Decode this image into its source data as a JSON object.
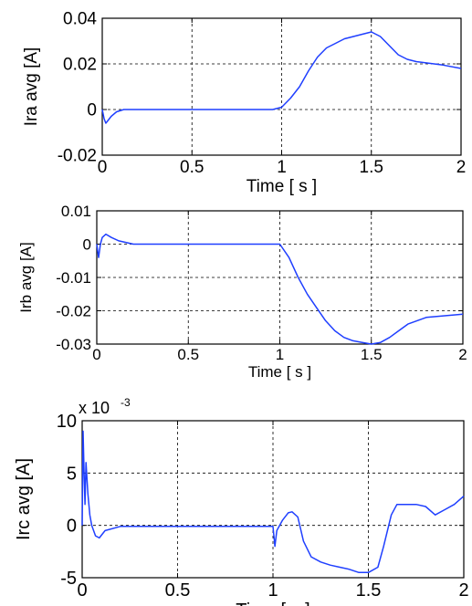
{
  "chart_data": [
    {
      "type": "line",
      "xlabel": "Time  [ s ]",
      "ylabel": "Ira avg  [A]",
      "xlim": [
        0,
        2
      ],
      "ylim": [
        -0.02,
        0.04
      ],
      "xticks": [
        "0",
        "0.5",
        "1",
        "1.5",
        "2"
      ],
      "yticks": [
        "-0.02",
        "0",
        "0.02",
        "0.04"
      ],
      "ytick_values": [
        -0.02,
        0,
        0.02,
        0.04
      ],
      "exponent_label": "",
      "grid": true,
      "color": "#1f3fff",
      "series": [
        {
          "x": [
            0,
            0.01,
            0.02,
            0.03,
            0.05,
            0.08,
            0.12,
            0.2,
            0.4,
            0.6,
            0.8,
            0.95,
            1.0,
            1.05,
            1.1,
            1.15,
            1.2,
            1.25,
            1.3,
            1.35,
            1.4,
            1.45,
            1.5,
            1.55,
            1.6,
            1.65,
            1.7,
            1.75,
            1.8,
            1.9,
            2.0
          ],
          "y": [
            0,
            -0.004,
            -0.006,
            -0.005,
            -0.003,
            -0.001,
            0,
            0,
            0,
            0,
            0,
            0,
            0.001,
            0.005,
            0.01,
            0.017,
            0.023,
            0.027,
            0.029,
            0.031,
            0.032,
            0.033,
            0.034,
            0.032,
            0.028,
            0.024,
            0.022,
            0.021,
            0.0205,
            0.0195,
            0.018
          ]
        }
      ]
    },
    {
      "type": "line",
      "xlabel": "Time [ s ]",
      "ylabel": "Irb avg  [A]",
      "xlim": [
        0,
        2
      ],
      "ylim": [
        -0.03,
        0.01
      ],
      "xticks": [
        "0",
        "0.5",
        "1",
        "1.5",
        "2"
      ],
      "yticks": [
        "-0.03",
        "-0.02",
        "-0.01",
        "0",
        "0.01"
      ],
      "ytick_values": [
        -0.03,
        -0.02,
        -0.01,
        0,
        0.01
      ],
      "exponent_label": "",
      "grid": true,
      "color": "#1f3fff",
      "series": [
        {
          "x": [
            0,
            0.01,
            0.02,
            0.03,
            0.05,
            0.08,
            0.12,
            0.2,
            0.4,
            0.6,
            0.8,
            0.95,
            1.0,
            1.05,
            1.1,
            1.15,
            1.2,
            1.25,
            1.3,
            1.35,
            1.4,
            1.45,
            1.5,
            1.55,
            1.6,
            1.65,
            1.7,
            1.8,
            1.9,
            2.0
          ],
          "y": [
            0,
            -0.004,
            0,
            0.002,
            0.003,
            0.002,
            0.001,
            0,
            0,
            0,
            0,
            0,
            0,
            -0.004,
            -0.01,
            -0.015,
            -0.019,
            -0.023,
            -0.026,
            -0.028,
            -0.029,
            -0.0295,
            -0.03,
            -0.0295,
            -0.028,
            -0.026,
            -0.024,
            -0.022,
            -0.0215,
            -0.021
          ]
        }
      ]
    },
    {
      "type": "line",
      "xlabel": "Time [ s ]",
      "ylabel": "Irc avg  [A]",
      "xlim": [
        0,
        2
      ],
      "ylim": [
        -5,
        10
      ],
      "xticks": [
        "0",
        "0.5",
        "1",
        "1.5",
        "2"
      ],
      "yticks": [
        "-5",
        "0",
        "5",
        "10"
      ],
      "ytick_values": [
        -5,
        0,
        5,
        10
      ],
      "exponent_label": "x 10",
      "exponent_power": "-3",
      "grid": true,
      "color": "#1f3fff",
      "series": [
        {
          "x": [
            0,
            0.005,
            0.01,
            0.015,
            0.02,
            0.03,
            0.04,
            0.05,
            0.07,
            0.09,
            0.12,
            0.2,
            0.5,
            0.8,
            1.0,
            1.01,
            1.02,
            1.05,
            1.08,
            1.1,
            1.13,
            1.16,
            1.2,
            1.25,
            1.3,
            1.35,
            1.4,
            1.45,
            1.5,
            1.55,
            1.58,
            1.62,
            1.65,
            1.7,
            1.75,
            1.8,
            1.85,
            1.9,
            1.95,
            2.0
          ],
          "y": [
            0,
            9,
            5,
            2,
            6,
            3,
            1,
            0,
            -1,
            -1.2,
            -0.5,
            -0.1,
            -0.1,
            -0.1,
            -0.1,
            -2,
            -0.5,
            0.5,
            1.2,
            1.3,
            0.8,
            -1.5,
            -3,
            -3.5,
            -3.8,
            -4,
            -4.2,
            -4.5,
            -4.5,
            -4,
            -2,
            1,
            2,
            2,
            2,
            1.8,
            1,
            1.5,
            2,
            2.8
          ]
        }
      ]
    }
  ]
}
